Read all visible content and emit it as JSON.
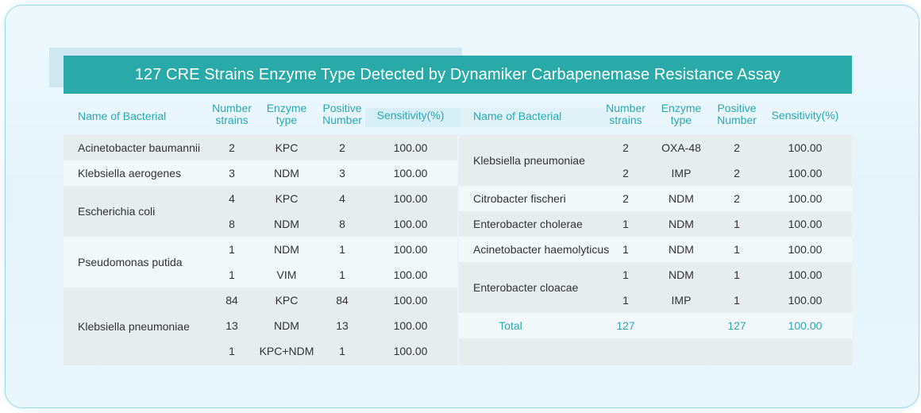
{
  "title": "127 CRE Strains Enzyme Type Detected by Dynamiker Carbapenemase Resistance Assay",
  "headers": {
    "name": "Name of Bacterial",
    "number_line1": "Number",
    "number_line2": "strains",
    "enzyme_line1": "Enzyme",
    "enzyme_line2": "type",
    "positive_line1": "Positive",
    "positive_line2": "Number",
    "sensitivity": "Sensitivity(%)"
  },
  "left": {
    "names": [
      "Acinetobacter baumannii",
      "Klebsiella aerogenes",
      "Escherichia coli",
      "Pseudomonas putida",
      "Klebsiella pneumoniae"
    ],
    "rows": [
      {
        "number": "2",
        "enzyme": "KPC",
        "positive": "2",
        "sensitivity": "100.00"
      },
      {
        "number": "3",
        "enzyme": "NDM",
        "positive": "3",
        "sensitivity": "100.00"
      },
      {
        "number": "4",
        "enzyme": "KPC",
        "positive": "4",
        "sensitivity": "100.00"
      },
      {
        "number": "8",
        "enzyme": "NDM",
        "positive": "8",
        "sensitivity": "100.00"
      },
      {
        "number": "1",
        "enzyme": "NDM",
        "positive": "1",
        "sensitivity": "100.00"
      },
      {
        "number": "1",
        "enzyme": "VIM",
        "positive": "1",
        "sensitivity": "100.00"
      },
      {
        "number": "84",
        "enzyme": "KPC",
        "positive": "84",
        "sensitivity": "100.00"
      },
      {
        "number": "13",
        "enzyme": "NDM",
        "positive": "13",
        "sensitivity": "100.00"
      },
      {
        "number": "1",
        "enzyme": "KPC+NDM",
        "positive": "1",
        "sensitivity": "100.00"
      }
    ]
  },
  "right": {
    "names": [
      "Klebsiella pneumoniae",
      "Citrobacter fischeri",
      "Enterobacter cholerae",
      "Acinetobacter haemolyticus",
      "Enterobacter cloacae"
    ],
    "rows": [
      {
        "number": "2",
        "enzyme": "OXA-48",
        "positive": "2",
        "sensitivity": "100.00"
      },
      {
        "number": "2",
        "enzyme": "IMP",
        "positive": "2",
        "sensitivity": "100.00"
      },
      {
        "number": "2",
        "enzyme": "NDM",
        "positive": "2",
        "sensitivity": "100.00"
      },
      {
        "number": "1",
        "enzyme": "NDM",
        "positive": "1",
        "sensitivity": "100.00"
      },
      {
        "number": "1",
        "enzyme": "NDM",
        "positive": "1",
        "sensitivity": "100.00"
      },
      {
        "number": "1",
        "enzyme": "NDM",
        "positive": "1",
        "sensitivity": "100.00"
      },
      {
        "number": "1",
        "enzyme": "IMP",
        "positive": "1",
        "sensitivity": "100.00"
      }
    ],
    "total": {
      "label": "Total",
      "number": "127",
      "positive": "127",
      "sensitivity": "100.00"
    }
  }
}
